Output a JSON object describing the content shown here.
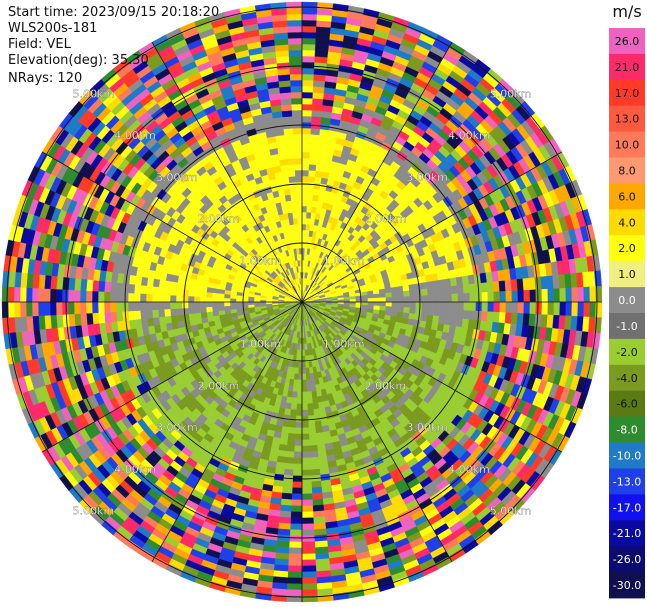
{
  "info": {
    "start_time": "Start time: 2023/09/15 20:18:20",
    "instrument": "WLS200s-181",
    "field": "Field: VEL",
    "elevation": "Elevation(deg): 35.30",
    "nrays": "NRays: 120"
  },
  "range_labels": [
    "1.00km",
    "2.00km",
    "3.00km",
    "4.00km",
    "5.00km"
  ],
  "colorbar": {
    "unit": "m/s",
    "ticks": [
      "26.0",
      "21.0",
      "17.0",
      "13.0",
      "10.0",
      "8.0",
      "6.0",
      "4.0",
      "2.0",
      "1.0",
      "0.0",
      "-1.0",
      "-2.0",
      "-4.0",
      "-6.0",
      "-8.0",
      "-10.0",
      "-13.0",
      "-17.0",
      "-21.0",
      "-26.0",
      "-30.0"
    ],
    "colors": [
      "#f062c0",
      "#ff2a6a",
      "#ff3a28",
      "#ff5a40",
      "#ff7a5a",
      "#ff9a70",
      "#ffa800",
      "#ffdc00",
      "#ffff10",
      "#f0f080",
      "#8c8c8c",
      "#707070",
      "#9acd32",
      "#7a9a20",
      "#5a7a14",
      "#2e8b2e",
      "#1f7ac8",
      "#1f3fe8",
      "#1010f0",
      "#0a0aa0",
      "#0b0b70",
      "#101050"
    ]
  }
}
